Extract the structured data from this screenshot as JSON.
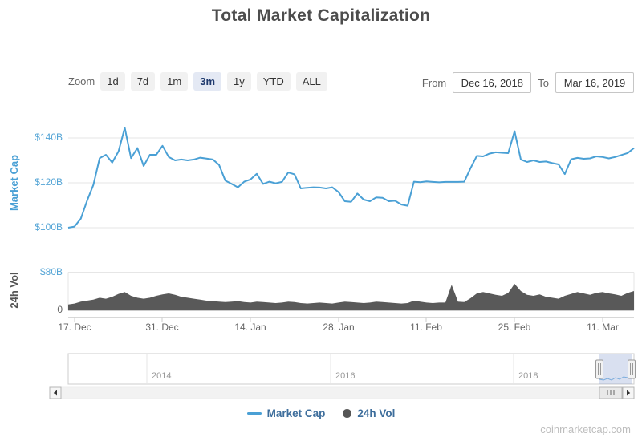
{
  "title": "Total Market Capitalization",
  "controls": {
    "zoom_label": "Zoom",
    "zoom_buttons": [
      {
        "label": "1d",
        "active": false
      },
      {
        "label": "7d",
        "active": false
      },
      {
        "label": "1m",
        "active": false
      },
      {
        "label": "3m",
        "active": true
      },
      {
        "label": "1y",
        "active": false
      },
      {
        "label": "YTD",
        "active": false
      },
      {
        "label": "ALL",
        "active": false
      }
    ],
    "from_label": "From",
    "from_value": "Dec 16, 2018",
    "to_label": "To",
    "to_value": "Mar 16, 2019"
  },
  "y_axis_market_cap": {
    "title": "Market Cap",
    "ticks": [
      "$140B",
      "$120B",
      "$100B"
    ]
  },
  "y_axis_volume": {
    "title": "24h Vol",
    "ticks": [
      "$80B",
      "0"
    ]
  },
  "x_axis": {
    "labels": [
      "17. Dec",
      "31. Dec",
      "14. Jan",
      "28. Jan",
      "11. Feb",
      "25. Feb",
      "11. Mar"
    ]
  },
  "navigator": {
    "year_labels": [
      "2014",
      "2016",
      "2018"
    ]
  },
  "legend": {
    "items": [
      {
        "label": "Market Cap",
        "marker": "line",
        "color": "#4aa0d5"
      },
      {
        "label": "24h Vol",
        "marker": "circle",
        "color": "#555555"
      }
    ]
  },
  "watermark": "coinmarketcap.com",
  "colors": {
    "market_cap_line": "#4aa0d5",
    "volume_fill": "#595959",
    "blue_axis_label": "#55a5d6",
    "gridline": "#e6e6e6",
    "navigator_mask": "rgba(102,133,194,0.25)",
    "active_button_bg": "#e4e9f4",
    "active_button_text": "#1f3a6e"
  },
  "chart_data": {
    "type": "line+column",
    "title": "Total Market Capitalization",
    "x_unit": "day",
    "x_start": "Dec 16, 2018",
    "x_end": "Mar 16, 2019",
    "x_tick_labels": [
      "17. Dec",
      "31. Dec",
      "14. Jan",
      "28. Jan",
      "11. Feb",
      "25. Feb",
      "11. Mar"
    ],
    "grid": true,
    "legend_position": "bottom",
    "series": [
      {
        "name": "Market Cap",
        "type": "line",
        "color": "#4aa0d5",
        "unit": "USD billions",
        "ylim": [
          95,
          148
        ],
        "axis_ticks": [
          100,
          120,
          140
        ],
        "values": [
          100,
          100.5,
          104,
          112,
          119,
          131,
          132.5,
          129,
          134,
          144.5,
          131,
          135.5,
          127.5,
          132.5,
          132.5,
          136.5,
          131.5,
          130,
          130.4,
          130,
          130.4,
          131.2,
          130.8,
          130.4,
          128,
          121,
          119.5,
          118,
          120.5,
          121.5,
          124,
          119.5,
          120.5,
          119.8,
          120.4,
          124.6,
          123.8,
          117.5,
          117.8,
          118,
          117.9,
          117.5,
          118,
          115.9,
          111.8,
          111.5,
          115.2,
          112.5,
          111.8,
          113.5,
          113.3,
          111.8,
          112,
          110.3,
          109.8,
          120.5,
          120.3,
          120.6,
          120.4,
          120.2,
          120.4,
          120.4,
          120.4,
          120.5,
          126.5,
          132,
          131.8,
          133,
          133.6,
          133.4,
          133.2,
          143,
          130.4,
          129.3,
          130,
          129.3,
          129.5,
          128.8,
          128.2,
          123.9,
          130.5,
          131.1,
          130.7,
          130.9,
          131.8,
          131.5,
          130.9,
          131.5,
          132.4,
          133.3,
          135.5
        ]
      },
      {
        "name": "24h Vol",
        "type": "column",
        "color": "#595959",
        "unit": "USD billions",
        "ylim": [
          0,
          80
        ],
        "axis_ticks": [
          0,
          80
        ],
        "values": [
          12,
          14,
          18,
          20,
          22,
          26,
          24,
          28,
          34,
          38,
          30,
          26,
          24,
          26,
          30,
          33,
          35,
          32,
          28,
          26,
          24,
          22,
          20,
          19,
          18,
          17,
          18,
          19,
          17,
          16,
          18,
          17,
          16,
          15,
          16,
          18,
          17,
          15,
          14,
          15,
          16,
          15,
          14,
          16,
          18,
          17,
          16,
          15,
          16,
          18,
          17,
          16,
          15,
          14,
          15,
          20,
          18,
          16,
          15,
          16,
          16,
          53,
          18,
          17,
          25,
          35,
          38,
          35,
          32,
          30,
          36,
          55,
          40,
          32,
          30,
          33,
          28,
          26,
          24,
          30,
          34,
          38,
          35,
          32,
          36,
          38,
          35,
          33,
          30,
          36,
          40
        ]
      }
    ],
    "navigator_year_ticks": [
      2014,
      2016,
      2018
    ]
  }
}
